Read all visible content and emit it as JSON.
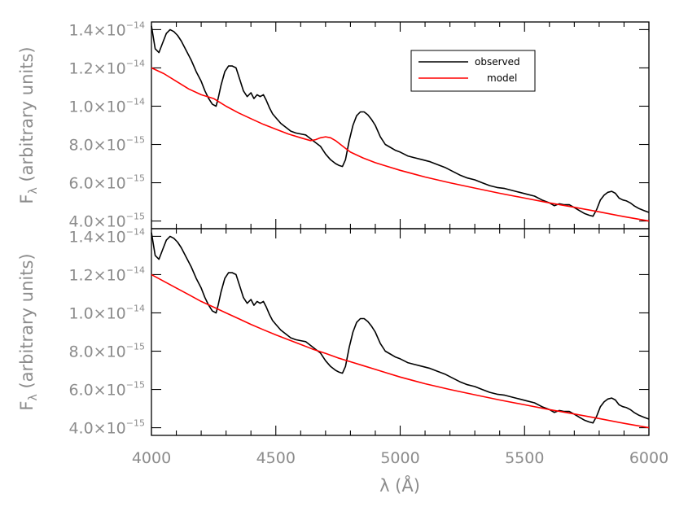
{
  "chart_data": [
    {
      "type": "line",
      "panel": "top",
      "xlim": [
        4000,
        6000
      ],
      "ylim": [
        3.6e-15,
        1.44e-14
      ],
      "yticks": [
        4e-15,
        6e-15,
        8e-15,
        1e-14,
        1.2e-14,
        1.4e-14
      ],
      "ytick_labels": [
        {
          "mant": "4.0×10",
          "exp": "−15"
        },
        {
          "mant": "6.0×10",
          "exp": "−15"
        },
        {
          "mant": "8.0×10",
          "exp": "−15"
        },
        {
          "mant": "1.0×10",
          "exp": "−14"
        },
        {
          "mant": "1.2×10",
          "exp": "−14"
        },
        {
          "mant": "1.4×10",
          "exp": "−14"
        }
      ],
      "xticks": [
        4000,
        4500,
        5000,
        5500,
        6000
      ],
      "ylabel": "Fλ (arbitrary units)",
      "legend": [
        "observed",
        "model"
      ],
      "legend_position": "top-right",
      "series": [
        {
          "name": "observed",
          "color": "#000000",
          "x": [
            4000,
            4015,
            4030,
            4045,
            4060,
            4075,
            4090,
            4105,
            4120,
            4140,
            4160,
            4180,
            4200,
            4215,
            4230,
            4245,
            4260,
            4268,
            4280,
            4295,
            4310,
            4325,
            4340,
            4355,
            4370,
            4385,
            4400,
            4412,
            4425,
            4437,
            4450,
            4462,
            4475,
            4487,
            4500,
            4520,
            4540,
            4560,
            4580,
            4600,
            4620,
            4640,
            4660,
            4680,
            4700,
            4720,
            4740,
            4755,
            4768,
            4780,
            4795,
            4810,
            4825,
            4840,
            4855,
            4870,
            4885,
            4900,
            4920,
            4940,
            4960,
            4980,
            5000,
            5030,
            5060,
            5090,
            5120,
            5150,
            5180,
            5210,
            5240,
            5270,
            5300,
            5330,
            5360,
            5390,
            5420,
            5450,
            5480,
            5510,
            5540,
            5570,
            5600,
            5620,
            5640,
            5660,
            5680,
            5700,
            5720,
            5740,
            5760,
            5775,
            5790,
            5805,
            5820,
            5835,
            5850,
            5865,
            5880,
            5895,
            5910,
            5925,
            5940,
            5960,
            5980,
            6000
          ],
          "y": [
            1.42e-14,
            1.3e-14,
            1.28e-14,
            1.33e-14,
            1.38e-14,
            1.4e-14,
            1.39e-14,
            1.37e-14,
            1.34e-14,
            1.29e-14,
            1.24e-14,
            1.18e-14,
            1.13e-14,
            1.08e-14,
            1.04e-14,
            1.01e-14,
            1e-14,
            1.04e-14,
            1.11e-14,
            1.18e-14,
            1.21e-14,
            1.21e-14,
            1.2e-14,
            1.14e-14,
            1.08e-14,
            1.05e-14,
            1.07e-14,
            1.04e-14,
            1.06e-14,
            1.05e-14,
            1.06e-14,
            1.03e-14,
            9.9e-15,
            9.6e-15,
            9.4e-15,
            9.1e-15,
            8.9e-15,
            8.7e-15,
            8.6e-15,
            8.55e-15,
            8.5e-15,
            8.3e-15,
            8.1e-15,
            7.9e-15,
            7.5e-15,
            7.2e-15,
            7e-15,
            6.9e-15,
            6.85e-15,
            7.2e-15,
            8.2e-15,
            9e-15,
            9.5e-15,
            9.7e-15,
            9.7e-15,
            9.55e-15,
            9.3e-15,
            9e-15,
            8.4e-15,
            8e-15,
            7.85e-15,
            7.7e-15,
            7.6e-15,
            7.4e-15,
            7.3e-15,
            7.2e-15,
            7.1e-15,
            6.95e-15,
            6.8e-15,
            6.6e-15,
            6.4e-15,
            6.25e-15,
            6.15e-15,
            6e-15,
            5.85e-15,
            5.75e-15,
            5.7e-15,
            5.6e-15,
            5.5e-15,
            5.4e-15,
            5.3e-15,
            5.1e-15,
            4.95e-15,
            4.8e-15,
            4.9e-15,
            4.85e-15,
            4.85e-15,
            4.7e-15,
            4.55e-15,
            4.4e-15,
            4.3e-15,
            4.25e-15,
            4.6e-15,
            5.1e-15,
            5.35e-15,
            5.5e-15,
            5.55e-15,
            5.45e-15,
            5.2e-15,
            5.1e-15,
            5.05e-15,
            4.95e-15,
            4.8e-15,
            4.65e-15,
            4.55e-15,
            4.45e-15
          ]
        },
        {
          "name": "model",
          "color": "#ff0000",
          "x": [
            4000,
            4050,
            4100,
            4150,
            4200,
            4250,
            4300,
            4350,
            4400,
            4450,
            4500,
            4550,
            4600,
            4640,
            4660,
            4680,
            4700,
            4720,
            4740,
            4760,
            4780,
            4800,
            4850,
            4900,
            4950,
            5000,
            5100,
            5200,
            5300,
            5400,
            5500,
            5600,
            5700,
            5800,
            5900,
            6000
          ],
          "y": [
            1.2e-14,
            1.17e-14,
            1.13e-14,
            1.09e-14,
            1.06e-14,
            1.04e-14,
            1e-14,
            9.65e-15,
            9.35e-15,
            9.05e-15,
            8.8e-15,
            8.55e-15,
            8.35e-15,
            8.2e-15,
            8.25e-15,
            8.35e-15,
            8.4e-15,
            8.35e-15,
            8.2e-15,
            8e-15,
            7.8e-15,
            7.6e-15,
            7.3e-15,
            7.05e-15,
            6.85e-15,
            6.65e-15,
            6.3e-15,
            6e-15,
            5.72e-15,
            5.45e-15,
            5.2e-15,
            4.95e-15,
            4.72e-15,
            4.48e-15,
            4.23e-15,
            4e-15
          ]
        }
      ]
    },
    {
      "type": "line",
      "panel": "bottom",
      "xlim": [
        4000,
        6000
      ],
      "ylim": [
        3.6e-15,
        1.44e-14
      ],
      "yticks": [
        4e-15,
        6e-15,
        8e-15,
        1e-14,
        1.2e-14,
        1.4e-14
      ],
      "ytick_labels": [
        {
          "mant": "4.0×10",
          "exp": "−15"
        },
        {
          "mant": "6.0×10",
          "exp": "−15"
        },
        {
          "mant": "8.0×10",
          "exp": "−15"
        },
        {
          "mant": "1.0×10",
          "exp": "−14"
        },
        {
          "mant": "1.2×10",
          "exp": "−14"
        },
        {
          "mant": "1.4×10",
          "exp": "−14"
        }
      ],
      "xticks": [
        4000,
        4500,
        5000,
        5500,
        6000
      ],
      "xtick_labels": [
        "4000",
        "4500",
        "5000",
        "5500",
        "6000"
      ],
      "xlabel": "λ (Å)",
      "ylabel": "Fλ (arbitrary units)",
      "series": [
        {
          "name": "observed",
          "color": "#000000",
          "x": [
            4000,
            4015,
            4030,
            4045,
            4060,
            4075,
            4090,
            4105,
            4120,
            4140,
            4160,
            4180,
            4200,
            4215,
            4230,
            4245,
            4260,
            4268,
            4280,
            4295,
            4310,
            4325,
            4340,
            4355,
            4370,
            4385,
            4400,
            4412,
            4425,
            4437,
            4450,
            4462,
            4475,
            4487,
            4500,
            4520,
            4540,
            4560,
            4580,
            4600,
            4620,
            4640,
            4660,
            4680,
            4700,
            4720,
            4740,
            4755,
            4768,
            4780,
            4795,
            4810,
            4825,
            4840,
            4855,
            4870,
            4885,
            4900,
            4920,
            4940,
            4960,
            4980,
            5000,
            5030,
            5060,
            5090,
            5120,
            5150,
            5180,
            5210,
            5240,
            5270,
            5300,
            5330,
            5360,
            5390,
            5420,
            5450,
            5480,
            5510,
            5540,
            5570,
            5600,
            5620,
            5640,
            5660,
            5680,
            5700,
            5720,
            5740,
            5760,
            5775,
            5790,
            5805,
            5820,
            5835,
            5850,
            5865,
            5880,
            5895,
            5910,
            5925,
            5940,
            5960,
            5980,
            6000
          ],
          "y": [
            1.42e-14,
            1.3e-14,
            1.28e-14,
            1.33e-14,
            1.38e-14,
            1.4e-14,
            1.39e-14,
            1.37e-14,
            1.34e-14,
            1.29e-14,
            1.24e-14,
            1.18e-14,
            1.13e-14,
            1.08e-14,
            1.04e-14,
            1.01e-14,
            1e-14,
            1.04e-14,
            1.11e-14,
            1.18e-14,
            1.21e-14,
            1.21e-14,
            1.2e-14,
            1.14e-14,
            1.08e-14,
            1.05e-14,
            1.07e-14,
            1.04e-14,
            1.06e-14,
            1.05e-14,
            1.06e-14,
            1.03e-14,
            9.9e-15,
            9.6e-15,
            9.4e-15,
            9.1e-15,
            8.9e-15,
            8.7e-15,
            8.6e-15,
            8.55e-15,
            8.5e-15,
            8.3e-15,
            8.1e-15,
            7.9e-15,
            7.5e-15,
            7.2e-15,
            7e-15,
            6.9e-15,
            6.85e-15,
            7.2e-15,
            8.2e-15,
            9e-15,
            9.5e-15,
            9.7e-15,
            9.7e-15,
            9.55e-15,
            9.3e-15,
            9e-15,
            8.4e-15,
            8e-15,
            7.85e-15,
            7.7e-15,
            7.6e-15,
            7.4e-15,
            7.3e-15,
            7.2e-15,
            7.1e-15,
            6.95e-15,
            6.8e-15,
            6.6e-15,
            6.4e-15,
            6.25e-15,
            6.15e-15,
            6e-15,
            5.85e-15,
            5.75e-15,
            5.7e-15,
            5.6e-15,
            5.5e-15,
            5.4e-15,
            5.3e-15,
            5.1e-15,
            4.95e-15,
            4.8e-15,
            4.9e-15,
            4.85e-15,
            4.85e-15,
            4.7e-15,
            4.55e-15,
            4.4e-15,
            4.3e-15,
            4.25e-15,
            4.6e-15,
            5.1e-15,
            5.35e-15,
            5.5e-15,
            5.55e-15,
            5.45e-15,
            5.2e-15,
            5.1e-15,
            5.05e-15,
            4.95e-15,
            4.8e-15,
            4.65e-15,
            4.55e-15,
            4.45e-15
          ]
        },
        {
          "name": "model",
          "color": "#ff0000",
          "x": [
            4000,
            4050,
            4100,
            4150,
            4200,
            4250,
            4300,
            4350,
            4400,
            4450,
            4500,
            4550,
            4600,
            4650,
            4700,
            4750,
            4800,
            4850,
            4900,
            4950,
            5000,
            5100,
            5200,
            5300,
            5400,
            5500,
            5600,
            5700,
            5800,
            5900,
            6000
          ],
          "y": [
            1.2e-14,
            1.165e-14,
            1.13e-14,
            1.095e-14,
            1.06e-14,
            1.03e-14,
            1e-14,
            9.7e-15,
            9.4e-15,
            9.12e-15,
            8.85e-15,
            8.6e-15,
            8.35e-15,
            8.1e-15,
            7.88e-15,
            7.65e-15,
            7.45e-15,
            7.25e-15,
            7.05e-15,
            6.85e-15,
            6.65e-15,
            6.3e-15,
            6e-15,
            5.72e-15,
            5.45e-15,
            5.2e-15,
            4.95e-15,
            4.72e-15,
            4.48e-15,
            4.23e-15,
            4e-15
          ]
        }
      ]
    }
  ]
}
